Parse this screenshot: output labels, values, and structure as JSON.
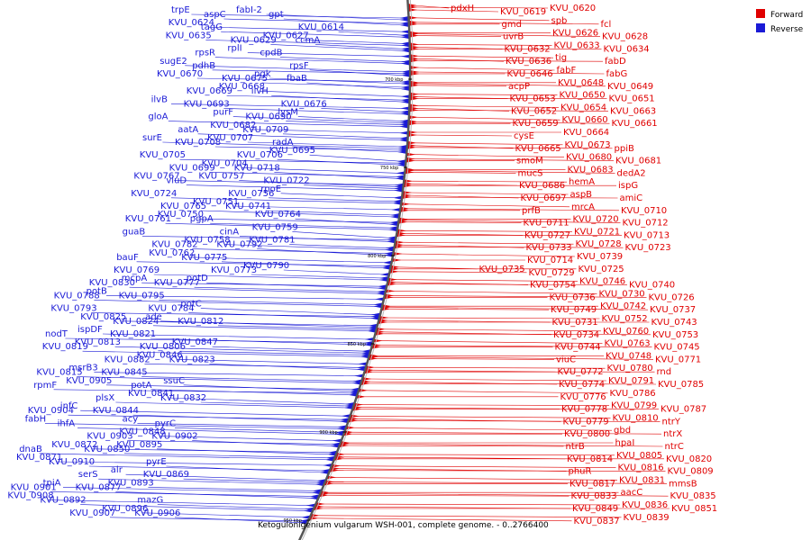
{
  "caption": "Ketogulonigenium vulgarum WSH-001, complete genome. - 0..2766400",
  "legend": [
    {
      "label": "Forward",
      "color": "#e00000"
    },
    {
      "label": "Reverse",
      "color": "#1a1ad6"
    }
  ],
  "scale_ticks": [
    "700 kbp",
    "750 kbp",
    "800 kbp",
    "850 kbp",
    "900 kbp",
    "950 kbp"
  ],
  "colors": {
    "forward": "#e00000",
    "reverse": "#1a1ad6",
    "backbone": "#555555"
  },
  "reverse_labels": [
    "trpE",
    "aspC",
    "fabI-2",
    "gpt",
    "KVU_0614",
    "KVU_0624",
    "tagG",
    "KVU_0629",
    "KVU_0627",
    "ccmA",
    "KVU_0635",
    "rpsR",
    "rplI",
    "cpdB",
    "rpsF",
    "sugE2",
    "pdhB",
    "KVU_0675",
    "pgk",
    "fbaB",
    "KVU_0670",
    "KVU_0669",
    "KVU_0668",
    "ilvH",
    "KVU_0676",
    "ilvB",
    "KVU_0693",
    "purF",
    "KVU_0690",
    "lysM",
    "gloA",
    "aatA",
    "KVU_0682",
    "KVU_0709",
    "radA",
    "surE",
    "KVU_0708",
    "KVU_0707",
    "KVU_0706",
    "KVU_0695",
    "KVU_0705",
    "KVU_0699",
    "KVU_0704",
    "KVU_0718",
    "KVU_0722",
    "KVU_0767",
    "viuD",
    "KVU_0757",
    "KVU_0756",
    "rpoE",
    "KVU_0724",
    "KVU_0765",
    "KVU_0751",
    "KVU_0741",
    "KVU_0764",
    "KVU_0761",
    "KVU_0750",
    "pgpA",
    "cinA",
    "KVU_0759",
    "guaB",
    "KVU_0782",
    "KVU_0758",
    "KVU_0792",
    "KVU_0781",
    "bauF",
    "KVU_0762",
    "KVU_0775",
    "KVU_0773",
    "KVU_0790",
    "KVU_0769",
    "KVU_0830",
    "mcpA",
    "KVU_0777",
    "potD",
    "KVU_0788",
    "potB",
    "KVU_0795",
    "KVU_0784",
    "potC",
    "KVU_0793",
    "KVU_0825",
    "KVU_0824",
    "ade",
    "KVU_0812",
    "nodT",
    "ispDF",
    "KVU_0821",
    "KVU_0806",
    "KVU_0847",
    "KVU_0819",
    "KVU_0813",
    "KVU_0882",
    "KVU_0846",
    "KVU_0823",
    "KVU_0815",
    "msrB3",
    "KVU_0845",
    "potA",
    "ssuC",
    "rpmF",
    "KVU_0905",
    "plsX",
    "KVU_0841",
    "KVU_0832",
    "KVU_0904",
    "infC",
    "KVU_0844",
    "acy",
    "pyrC",
    "fabH",
    "ihfA",
    "KVU_0903",
    "KVU_0848",
    "KVU_0902",
    "dnaB",
    "KVU_0872",
    "KVU_0850",
    "KVU_0895",
    "pyrE",
    "KVU_0871",
    "KVU_0910",
    "serS",
    "alr",
    "KVU_0869",
    "KVU_0901",
    "tpiA",
    "KVU_0877",
    "KVU_0893",
    "mazG",
    "KVU_0908",
    "KVU_0892",
    "KVU_0907",
    "KVU_0896",
    "KVU_0906"
  ],
  "forward_labels": [
    "pdxH",
    "KVU_0619",
    "KVU_0620",
    "gmd",
    "spb",
    "fcl",
    "uvrB",
    "KVU_0626",
    "KVU_0628",
    "KVU_0632",
    "KVU_0633",
    "KVU_0634",
    "KVU_0636",
    "tig",
    "fabD",
    "KVU_0646",
    "fabF",
    "fabG",
    "acpP",
    "KVU_0648",
    "KVU_0649",
    "KVU_0653",
    "KVU_0650",
    "KVU_0651",
    "KVU_0652",
    "KVU_0654",
    "KVU_0663",
    "KVU_0659",
    "KVU_0660",
    "KVU_0661",
    "cysE",
    "KVU_0664",
    "KVU_0665",
    "KVU_0673",
    "ppiB",
    "smoM",
    "KVU_0680",
    "KVU_0681",
    "mucS",
    "KVU_0683",
    "dedA2",
    "KVU_0686",
    "hemA",
    "ispG",
    "KVU_0697",
    "aspB",
    "amiC",
    "prfB",
    "mrcA",
    "KVU_0710",
    "KVU_0711",
    "KVU_0720",
    "KVU_0712",
    "KVU_0727",
    "KVU_0721",
    "KVU_0713",
    "KVU_0733",
    "KVU_0728",
    "KVU_0723",
    "KVU_0714",
    "KVU_0739",
    "KVU_0735",
    "KVU_0729",
    "KVU_0725",
    "KVU_0754",
    "KVU_0746",
    "KVU_0740",
    "KVU_0736",
    "KVU_0730",
    "KVU_0726",
    "KVU_0749",
    "KVU_0742",
    "KVU_0737",
    "KVU_0731",
    "KVU_0752",
    "KVU_0743",
    "KVU_0734",
    "KVU_0760",
    "KVU_0753",
    "KVU_0744",
    "KVU_0763",
    "KVU_0745",
    "viuC",
    "KVU_0748",
    "KVU_0771",
    "KVU_0772",
    "KVU_0780",
    "rnd",
    "KVU_0774",
    "KVU_0791",
    "KVU_0785",
    "KVU_0776",
    "KVU_0786",
    "KVU_0778",
    "KVU_0799",
    "KVU_0787",
    "KVU_0779",
    "KVU_0810",
    "ntrY",
    "KVU_0800",
    "gbd",
    "ntrX",
    "ntrB",
    "hpaI",
    "ntrC",
    "KVU_0814",
    "KVU_0805",
    "KVU_0820",
    "phuR",
    "KVU_0816",
    "KVU_0809",
    "KVU_0817",
    "KVU_0831",
    "mmsB",
    "KVU_0833",
    "aacC",
    "KVU_0835",
    "KVU_0849",
    "KVU_0836",
    "KVU_0851",
    "KVU_0837",
    "KVU_0839"
  ]
}
